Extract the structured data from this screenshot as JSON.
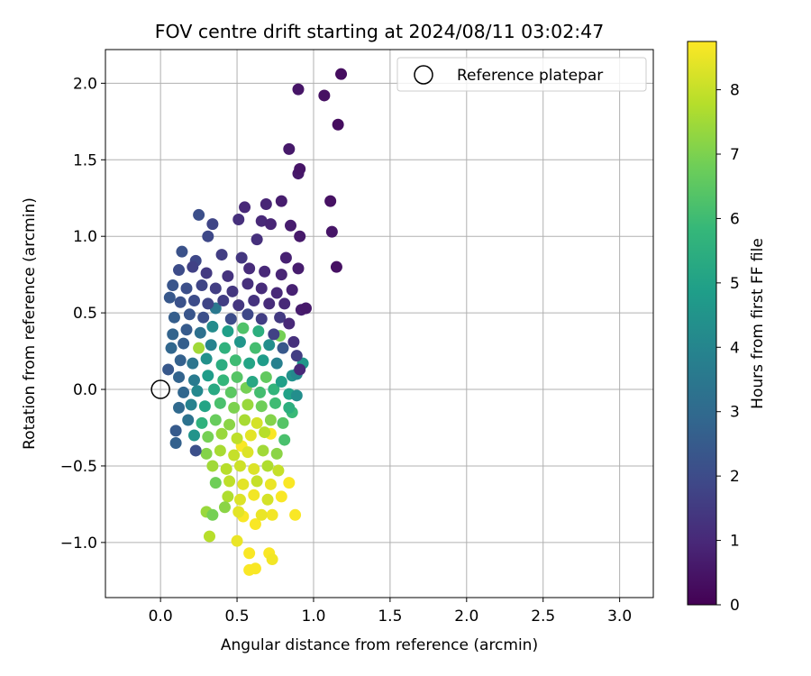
{
  "chart_data": {
    "type": "scatter",
    "title": "FOV centre drift starting at 2024/08/11 03:02:47",
    "xlabel": "Angular distance from reference (arcmin)",
    "ylabel": "Rotation from reference (arcmin)",
    "xlim": [
      -0.36,
      3.22
    ],
    "ylim": [
      -1.36,
      2.22
    ],
    "xticks": [
      0.0,
      0.5,
      1.0,
      1.5,
      2.0,
      2.5,
      3.0
    ],
    "xtick_labels": [
      "0.0",
      "0.5",
      "1.0",
      "1.5",
      "2.0",
      "2.5",
      "3.0"
    ],
    "yticks": [
      -1.0,
      -0.5,
      0.0,
      0.5,
      1.0,
      1.5,
      2.0
    ],
    "ytick_labels": [
      "−1.0",
      "−0.5",
      "0.0",
      "0.5",
      "1.0",
      "1.5",
      "2.0"
    ],
    "grid": true,
    "legend": {
      "placement": "top-right",
      "entries": [
        {
          "label": "Reference platepar",
          "marker": "open-circle"
        }
      ]
    },
    "reference_point": {
      "x": 0.0,
      "y": 0.0
    },
    "colorbar": {
      "label": "Hours from first FF file",
      "range": [
        0,
        8.75
      ],
      "ticks": [
        0,
        1,
        2,
        3,
        4,
        5,
        6,
        7,
        8
      ],
      "tick_labels": [
        "0",
        "1",
        "2",
        "3",
        "4",
        "5",
        "6",
        "7",
        "8"
      ],
      "colormap": "viridis",
      "colors": [
        "#440154",
        "#482878",
        "#3e4a89",
        "#31688e",
        "#26828e",
        "#1f9e89",
        "#35b779",
        "#6ece58",
        "#b5de2b",
        "#fde725"
      ]
    },
    "points": [
      {
        "x": 1.18,
        "y": 2.06,
        "c": 0.3
      },
      {
        "x": 0.9,
        "y": 1.96,
        "c": 0.5
      },
      {
        "x": 1.07,
        "y": 1.92,
        "c": 0.4
      },
      {
        "x": 1.16,
        "y": 1.73,
        "c": 0.3
      },
      {
        "x": 0.84,
        "y": 1.57,
        "c": 0.6
      },
      {
        "x": 0.91,
        "y": 1.44,
        "c": 0.5
      },
      {
        "x": 0.9,
        "y": 1.41,
        "c": 0.6
      },
      {
        "x": 1.11,
        "y": 1.23,
        "c": 0.4
      },
      {
        "x": 1.12,
        "y": 1.03,
        "c": 0.5
      },
      {
        "x": 1.15,
        "y": 0.8,
        "c": 0.4
      },
      {
        "x": 0.79,
        "y": 1.23,
        "c": 0.7
      },
      {
        "x": 0.69,
        "y": 1.21,
        "c": 0.9
      },
      {
        "x": 0.55,
        "y": 1.19,
        "c": 1.0
      },
      {
        "x": 0.85,
        "y": 1.07,
        "c": 0.7
      },
      {
        "x": 0.91,
        "y": 1.0,
        "c": 0.6
      },
      {
        "x": 0.25,
        "y": 1.14,
        "c": 2.1
      },
      {
        "x": 0.34,
        "y": 1.08,
        "c": 1.8
      },
      {
        "x": 0.51,
        "y": 1.11,
        "c": 1.2
      },
      {
        "x": 0.31,
        "y": 1.0,
        "c": 1.9
      },
      {
        "x": 0.63,
        "y": 0.98,
        "c": 1.2
      },
      {
        "x": 0.66,
        "y": 1.1,
        "c": 1.0
      },
      {
        "x": 0.72,
        "y": 1.08,
        "c": 0.9
      },
      {
        "x": 0.14,
        "y": 0.9,
        "c": 2.2
      },
      {
        "x": 0.23,
        "y": 0.84,
        "c": 1.9
      },
      {
        "x": 0.4,
        "y": 0.88,
        "c": 1.6
      },
      {
        "x": 0.53,
        "y": 0.86,
        "c": 1.4
      },
      {
        "x": 0.82,
        "y": 0.86,
        "c": 0.8
      },
      {
        "x": 0.12,
        "y": 0.78,
        "c": 2.0
      },
      {
        "x": 0.21,
        "y": 0.8,
        "c": 1.7
      },
      {
        "x": 0.3,
        "y": 0.76,
        "c": 1.5
      },
      {
        "x": 0.44,
        "y": 0.74,
        "c": 1.3
      },
      {
        "x": 0.58,
        "y": 0.79,
        "c": 1.1
      },
      {
        "x": 0.68,
        "y": 0.77,
        "c": 1.0
      },
      {
        "x": 0.79,
        "y": 0.75,
        "c": 0.9
      },
      {
        "x": 0.9,
        "y": 0.79,
        "c": 0.7
      },
      {
        "x": 0.08,
        "y": 0.68,
        "c": 2.3
      },
      {
        "x": 0.17,
        "y": 0.66,
        "c": 2.1
      },
      {
        "x": 0.27,
        "y": 0.68,
        "c": 1.8
      },
      {
        "x": 0.36,
        "y": 0.66,
        "c": 1.6
      },
      {
        "x": 0.47,
        "y": 0.64,
        "c": 1.4
      },
      {
        "x": 0.57,
        "y": 0.69,
        "c": 1.2
      },
      {
        "x": 0.66,
        "y": 0.66,
        "c": 1.1
      },
      {
        "x": 0.76,
        "y": 0.63,
        "c": 1.0
      },
      {
        "x": 0.86,
        "y": 0.65,
        "c": 0.8
      },
      {
        "x": 0.06,
        "y": 0.6,
        "c": 2.4
      },
      {
        "x": 0.13,
        "y": 0.57,
        "c": 2.2
      },
      {
        "x": 0.22,
        "y": 0.58,
        "c": 2.0
      },
      {
        "x": 0.31,
        "y": 0.56,
        "c": 1.8
      },
      {
        "x": 0.41,
        "y": 0.58,
        "c": 1.6
      },
      {
        "x": 0.51,
        "y": 0.55,
        "c": 1.4
      },
      {
        "x": 0.61,
        "y": 0.58,
        "c": 1.3
      },
      {
        "x": 0.71,
        "y": 0.56,
        "c": 1.1
      },
      {
        "x": 0.81,
        "y": 0.56,
        "c": 1.0
      },
      {
        "x": 0.92,
        "y": 0.52,
        "c": 0.7
      },
      {
        "x": 0.95,
        "y": 0.53,
        "c": 0.6
      },
      {
        "x": 0.09,
        "y": 0.47,
        "c": 2.6
      },
      {
        "x": 0.19,
        "y": 0.49,
        "c": 2.3
      },
      {
        "x": 0.28,
        "y": 0.47,
        "c": 2.1
      },
      {
        "x": 0.36,
        "y": 0.53,
        "c": 3.5
      },
      {
        "x": 0.46,
        "y": 0.46,
        "c": 2.0
      },
      {
        "x": 0.57,
        "y": 0.49,
        "c": 1.9
      },
      {
        "x": 0.66,
        "y": 0.46,
        "c": 1.6
      },
      {
        "x": 0.78,
        "y": 0.47,
        "c": 1.5
      },
      {
        "x": 0.84,
        "y": 0.43,
        "c": 1.0
      },
      {
        "x": 0.08,
        "y": 0.36,
        "c": 2.8
      },
      {
        "x": 0.17,
        "y": 0.39,
        "c": 2.5
      },
      {
        "x": 0.26,
        "y": 0.37,
        "c": 3.2
      },
      {
        "x": 0.34,
        "y": 0.41,
        "c": 4.2
      },
      {
        "x": 0.44,
        "y": 0.38,
        "c": 4.9
      },
      {
        "x": 0.54,
        "y": 0.4,
        "c": 6.3
      },
      {
        "x": 0.64,
        "y": 0.38,
        "c": 5.5
      },
      {
        "x": 0.74,
        "y": 0.36,
        "c": 1.7
      },
      {
        "x": 0.78,
        "y": 0.35,
        "c": 6.9
      },
      {
        "x": 0.87,
        "y": 0.31,
        "c": 1.2
      },
      {
        "x": 0.07,
        "y": 0.27,
        "c": 2.9
      },
      {
        "x": 0.15,
        "y": 0.3,
        "c": 2.6
      },
      {
        "x": 0.25,
        "y": 0.27,
        "c": 7.5
      },
      {
        "x": 0.33,
        "y": 0.29,
        "c": 3.9
      },
      {
        "x": 0.42,
        "y": 0.27,
        "c": 5.6
      },
      {
        "x": 0.52,
        "y": 0.31,
        "c": 4.6
      },
      {
        "x": 0.62,
        "y": 0.27,
        "c": 6.1
      },
      {
        "x": 0.71,
        "y": 0.29,
        "c": 4.3
      },
      {
        "x": 0.8,
        "y": 0.27,
        "c": 2.4
      },
      {
        "x": 0.89,
        "y": 0.22,
        "c": 1.6
      },
      {
        "x": 0.13,
        "y": 0.19,
        "c": 2.7
      },
      {
        "x": 0.21,
        "y": 0.17,
        "c": 3.4
      },
      {
        "x": 0.3,
        "y": 0.2,
        "c": 4.4
      },
      {
        "x": 0.4,
        "y": 0.16,
        "c": 5.4
      },
      {
        "x": 0.49,
        "y": 0.19,
        "c": 6.0
      },
      {
        "x": 0.58,
        "y": 0.17,
        "c": 5.1
      },
      {
        "x": 0.67,
        "y": 0.19,
        "c": 4.8
      },
      {
        "x": 0.76,
        "y": 0.17,
        "c": 3.8
      },
      {
        "x": 0.93,
        "y": 0.17,
        "c": 4.6
      },
      {
        "x": 0.91,
        "y": 0.13,
        "c": 1.0
      },
      {
        "x": 0.05,
        "y": 0.13,
        "c": 2.4
      },
      {
        "x": 0.12,
        "y": 0.08,
        "c": 2.8
      },
      {
        "x": 0.22,
        "y": 0.06,
        "c": 3.6
      },
      {
        "x": 0.31,
        "y": 0.09,
        "c": 4.8
      },
      {
        "x": 0.41,
        "y": 0.06,
        "c": 5.8
      },
      {
        "x": 0.5,
        "y": 0.08,
        "c": 6.4
      },
      {
        "x": 0.6,
        "y": 0.05,
        "c": 5.2
      },
      {
        "x": 0.69,
        "y": 0.08,
        "c": 6.6
      },
      {
        "x": 0.79,
        "y": 0.05,
        "c": 4.9
      },
      {
        "x": 0.86,
        "y": 0.09,
        "c": 4.4
      },
      {
        "x": 0.89,
        "y": 0.1,
        "c": 4.1
      },
      {
        "x": 0.15,
        "y": -0.02,
        "c": 2.9
      },
      {
        "x": 0.24,
        "y": -0.01,
        "c": 4.1
      },
      {
        "x": 0.35,
        "y": 0.0,
        "c": 5.3
      },
      {
        "x": 0.46,
        "y": -0.02,
        "c": 6.5
      },
      {
        "x": 0.56,
        "y": 0.01,
        "c": 6.9
      },
      {
        "x": 0.65,
        "y": -0.02,
        "c": 6.1
      },
      {
        "x": 0.74,
        "y": 0.0,
        "c": 5.7
      },
      {
        "x": 0.84,
        "y": -0.03,
        "c": 5.0
      },
      {
        "x": 0.89,
        "y": -0.04,
        "c": 4.3
      },
      {
        "x": 0.12,
        "y": -0.12,
        "c": 3.0
      },
      {
        "x": 0.2,
        "y": -0.1,
        "c": 3.9
      },
      {
        "x": 0.29,
        "y": -0.11,
        "c": 5.1
      },
      {
        "x": 0.39,
        "y": -0.09,
        "c": 6.2
      },
      {
        "x": 0.48,
        "y": -0.12,
        "c": 7.0
      },
      {
        "x": 0.57,
        "y": -0.1,
        "c": 7.4
      },
      {
        "x": 0.66,
        "y": -0.11,
        "c": 6.8
      },
      {
        "x": 0.75,
        "y": -0.09,
        "c": 6.0
      },
      {
        "x": 0.84,
        "y": -0.12,
        "c": 5.5
      },
      {
        "x": 0.18,
        "y": -0.2,
        "c": 3.3
      },
      {
        "x": 0.27,
        "y": -0.22,
        "c": 5.6
      },
      {
        "x": 0.36,
        "y": -0.2,
        "c": 6.7
      },
      {
        "x": 0.45,
        "y": -0.23,
        "c": 7.2
      },
      {
        "x": 0.55,
        "y": -0.2,
        "c": 7.6
      },
      {
        "x": 0.63,
        "y": -0.22,
        "c": 8.2
      },
      {
        "x": 0.72,
        "y": -0.2,
        "c": 7.1
      },
      {
        "x": 0.8,
        "y": -0.22,
        "c": 6.4
      },
      {
        "x": 0.86,
        "y": -0.15,
        "c": 5.9
      },
      {
        "x": 0.1,
        "y": -0.27,
        "c": 2.5
      },
      {
        "x": 0.22,
        "y": -0.3,
        "c": 4.5
      },
      {
        "x": 0.31,
        "y": -0.31,
        "c": 6.9
      },
      {
        "x": 0.4,
        "y": -0.29,
        "c": 7.4
      },
      {
        "x": 0.5,
        "y": -0.32,
        "c": 7.9
      },
      {
        "x": 0.59,
        "y": -0.3,
        "c": 8.4
      },
      {
        "x": 0.68,
        "y": -0.28,
        "c": 7.8
      },
      {
        "x": 0.72,
        "y": -0.29,
        "c": 8.7
      },
      {
        "x": 0.81,
        "y": -0.33,
        "c": 6.2
      },
      {
        "x": 0.1,
        "y": -0.35,
        "c": 2.7
      },
      {
        "x": 0.23,
        "y": -0.4,
        "c": 2.1
      },
      {
        "x": 0.3,
        "y": -0.42,
        "c": 7.1
      },
      {
        "x": 0.39,
        "y": -0.4,
        "c": 7.6
      },
      {
        "x": 0.48,
        "y": -0.43,
        "c": 8.0
      },
      {
        "x": 0.57,
        "y": -0.41,
        "c": 8.3
      },
      {
        "x": 0.53,
        "y": -0.37,
        "c": 8.7
      },
      {
        "x": 0.67,
        "y": -0.4,
        "c": 7.5
      },
      {
        "x": 0.76,
        "y": -0.42,
        "c": 7.2
      },
      {
        "x": 0.34,
        "y": -0.5,
        "c": 7.5
      },
      {
        "x": 0.43,
        "y": -0.52,
        "c": 7.8
      },
      {
        "x": 0.52,
        "y": -0.5,
        "c": 8.1
      },
      {
        "x": 0.61,
        "y": -0.52,
        "c": 8.3
      },
      {
        "x": 0.7,
        "y": -0.5,
        "c": 7.7
      },
      {
        "x": 0.77,
        "y": -0.53,
        "c": 8.0
      },
      {
        "x": 0.36,
        "y": -0.61,
        "c": 6.8
      },
      {
        "x": 0.45,
        "y": -0.6,
        "c": 7.9
      },
      {
        "x": 0.54,
        "y": -0.62,
        "c": 8.4
      },
      {
        "x": 0.63,
        "y": -0.6,
        "c": 8.0
      },
      {
        "x": 0.72,
        "y": -0.62,
        "c": 8.5
      },
      {
        "x": 0.84,
        "y": -0.61,
        "c": 8.7
      },
      {
        "x": 0.44,
        "y": -0.7,
        "c": 7.7
      },
      {
        "x": 0.52,
        "y": -0.72,
        "c": 8.3
      },
      {
        "x": 0.61,
        "y": -0.69,
        "c": 8.6
      },
      {
        "x": 0.7,
        "y": -0.72,
        "c": 8.2
      },
      {
        "x": 0.79,
        "y": -0.7,
        "c": 8.7
      },
      {
        "x": 0.42,
        "y": -0.77,
        "c": 7.2
      },
      {
        "x": 0.51,
        "y": -0.8,
        "c": 8.4
      },
      {
        "x": 0.3,
        "y": -0.8,
        "c": 7.4
      },
      {
        "x": 0.34,
        "y": -0.82,
        "c": 6.9
      },
      {
        "x": 0.54,
        "y": -0.83,
        "c": 8.7
      },
      {
        "x": 0.66,
        "y": -0.82,
        "c": 8.5
      },
      {
        "x": 0.62,
        "y": -0.88,
        "c": 8.7
      },
      {
        "x": 0.73,
        "y": -0.82,
        "c": 8.6
      },
      {
        "x": 0.88,
        "y": -0.82,
        "c": 8.7
      },
      {
        "x": 0.32,
        "y": -0.96,
        "c": 7.8
      },
      {
        "x": 0.5,
        "y": -0.99,
        "c": 8.5
      },
      {
        "x": 0.58,
        "y": -1.07,
        "c": 8.7
      },
      {
        "x": 0.71,
        "y": -1.07,
        "c": 8.7
      },
      {
        "x": 0.73,
        "y": -1.11,
        "c": 8.6
      },
      {
        "x": 0.58,
        "y": -1.18,
        "c": 8.7
      },
      {
        "x": 0.62,
        "y": -1.17,
        "c": 8.7
      }
    ]
  }
}
